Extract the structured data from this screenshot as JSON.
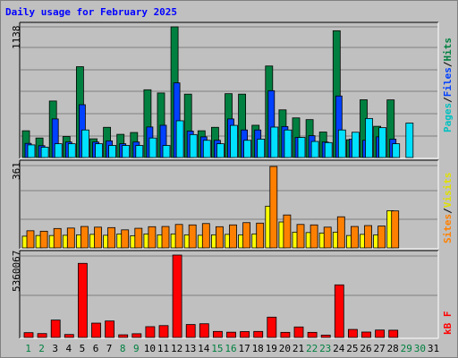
{
  "title": "Daily usage for February 2025",
  "colors": {
    "hits": "#008040",
    "files": "#0040ff",
    "pages": "#00e0ff",
    "visits": "#ffff00",
    "sites": "#ff8000",
    "kbytes": "#ff0000",
    "weekday_label": "#000000",
    "weekend_label": "#008040"
  },
  "right_labels": {
    "top": [
      {
        "text": "Pages",
        "color": "#00c0c0"
      },
      {
        "text": "/",
        "color": "#000000"
      },
      {
        "text": "Files",
        "color": "#0040ff"
      },
      {
        "text": "/",
        "color": "#000000"
      },
      {
        "text": "Hits",
        "color": "#008040"
      }
    ],
    "middle": [
      {
        "text": "Sites",
        "color": "#ff8000"
      },
      {
        "text": "/",
        "color": "#000000"
      },
      {
        "text": "Visits",
        "color": "#e0e000"
      }
    ],
    "bottom": [
      {
        "text": "kB F",
        "color": "#ff0000"
      }
    ]
  },
  "chart_data": [
    {
      "type": "bar",
      "panel": "top",
      "max_label": "1138",
      "ylim": [
        0,
        1138
      ],
      "categories": [
        "1",
        "2",
        "3",
        "4",
        "5",
        "6",
        "7",
        "8",
        "9",
        "10",
        "11",
        "12",
        "13",
        "14",
        "15",
        "16",
        "17",
        "18",
        "19",
        "20",
        "21",
        "22",
        "23",
        "24",
        "25",
        "26",
        "27",
        "28",
        "29",
        "30",
        "31"
      ],
      "series": [
        {
          "name": "Hits",
          "values": [
            233,
            170,
            492,
            183,
            791,
            163,
            263,
            202,
            218,
            590,
            562,
            1138,
            552,
            233,
            263,
            556,
            552,
            281,
            797,
            415,
            345,
            330,
            222,
            1104,
            155,
            503,
            272,
            502,
            0,
            0,
            0
          ]
        },
        {
          "name": "Files",
          "values": [
            123,
            103,
            336,
            135,
            460,
            135,
            145,
            120,
            135,
            266,
            281,
            650,
            230,
            180,
            150,
            336,
            240,
            240,
            582,
            270,
            175,
            190,
            135,
            536,
            160,
            150,
            180,
            160,
            0,
            0,
            0
          ]
        },
        {
          "name": "Pages",
          "values": [
            110,
            90,
            120,
            120,
            240,
            120,
            105,
            105,
            105,
            170,
            105,
            320,
            200,
            150,
            120,
            280,
            150,
            160,
            265,
            240,
            175,
            140,
            130,
            240,
            220,
            340,
            260,
            120,
            300,
            0,
            0
          ]
        }
      ]
    },
    {
      "type": "bar",
      "panel": "middle",
      "max_label": "361",
      "ylim": [
        0,
        361
      ],
      "categories": [
        "1",
        "2",
        "3",
        "4",
        "5",
        "6",
        "7",
        "8",
        "9",
        "10",
        "11",
        "12",
        "13",
        "14",
        "15",
        "16",
        "17",
        "18",
        "19",
        "20",
        "21",
        "22",
        "23",
        "24",
        "25",
        "26",
        "27",
        "28",
        "29",
        "30",
        "31"
      ],
      "series": [
        {
          "name": "Visits",
          "values": [
            52,
            55,
            55,
            56,
            58,
            60,
            56,
            62,
            54,
            62,
            58,
            62,
            58,
            56,
            58,
            60,
            58,
            62,
            185,
            115,
            70,
            68,
            66,
            70,
            55,
            60,
            58,
            165,
            0,
            0,
            0
          ]
        },
        {
          "name": "Sites",
          "values": [
            76,
            74,
            86,
            88,
            95,
            92,
            90,
            80,
            87,
            94,
            95,
            104,
            102,
            108,
            94,
            102,
            112,
            110,
            361,
            146,
            104,
            102,
            92,
            138,
            95,
            99,
            97,
            164,
            0,
            0,
            0
          ]
        }
      ]
    },
    {
      "type": "bar",
      "panel": "bottom",
      "max_label": "5360067",
      "ylim": [
        0,
        5360067
      ],
      "categories": [
        "1",
        "2",
        "3",
        "4",
        "5",
        "6",
        "7",
        "8",
        "9",
        "10",
        "11",
        "12",
        "13",
        "14",
        "15",
        "16",
        "17",
        "18",
        "19",
        "20",
        "21",
        "22",
        "23",
        "24",
        "25",
        "26",
        "27",
        "28",
        "29",
        "30",
        "31"
      ],
      "series": [
        {
          "name": "KBytes",
          "values": [
            310000,
            250000,
            1130000,
            190000,
            4820000,
            930000,
            1070000,
            170000,
            240000,
            700000,
            770000,
            5360067,
            840000,
            890000,
            390000,
            340000,
            380000,
            390000,
            1320000,
            330000,
            680000,
            330000,
            150000,
            3420000,
            520000,
            350000,
            480000,
            470000,
            0,
            0,
            0
          ]
        }
      ]
    }
  ],
  "x_labels": [
    {
      "text": "1",
      "weekend": true
    },
    {
      "text": "2",
      "weekend": true
    },
    {
      "text": "3",
      "weekend": false
    },
    {
      "text": "4",
      "weekend": false
    },
    {
      "text": "5",
      "weekend": false
    },
    {
      "text": "6",
      "weekend": false
    },
    {
      "text": "7",
      "weekend": false
    },
    {
      "text": "8",
      "weekend": true
    },
    {
      "text": "9",
      "weekend": true
    },
    {
      "text": "10",
      "weekend": false
    },
    {
      "text": "11",
      "weekend": false
    },
    {
      "text": "12",
      "weekend": false
    },
    {
      "text": "13",
      "weekend": false
    },
    {
      "text": "14",
      "weekend": false
    },
    {
      "text": "15",
      "weekend": true
    },
    {
      "text": "16",
      "weekend": true
    },
    {
      "text": "17",
      "weekend": false
    },
    {
      "text": "18",
      "weekend": false
    },
    {
      "text": "19",
      "weekend": false
    },
    {
      "text": "20",
      "weekend": false
    },
    {
      "text": "21",
      "weekend": false
    },
    {
      "text": "22",
      "weekend": true
    },
    {
      "text": "23",
      "weekend": true
    },
    {
      "text": "24",
      "weekend": false
    },
    {
      "text": "25",
      "weekend": false
    },
    {
      "text": "26",
      "weekend": false
    },
    {
      "text": "27",
      "weekend": false
    },
    {
      "text": "28",
      "weekend": false
    },
    {
      "text": "29",
      "weekend": true
    },
    {
      "text": "30",
      "weekend": true
    },
    {
      "text": "31",
      "weekend": false
    }
  ]
}
